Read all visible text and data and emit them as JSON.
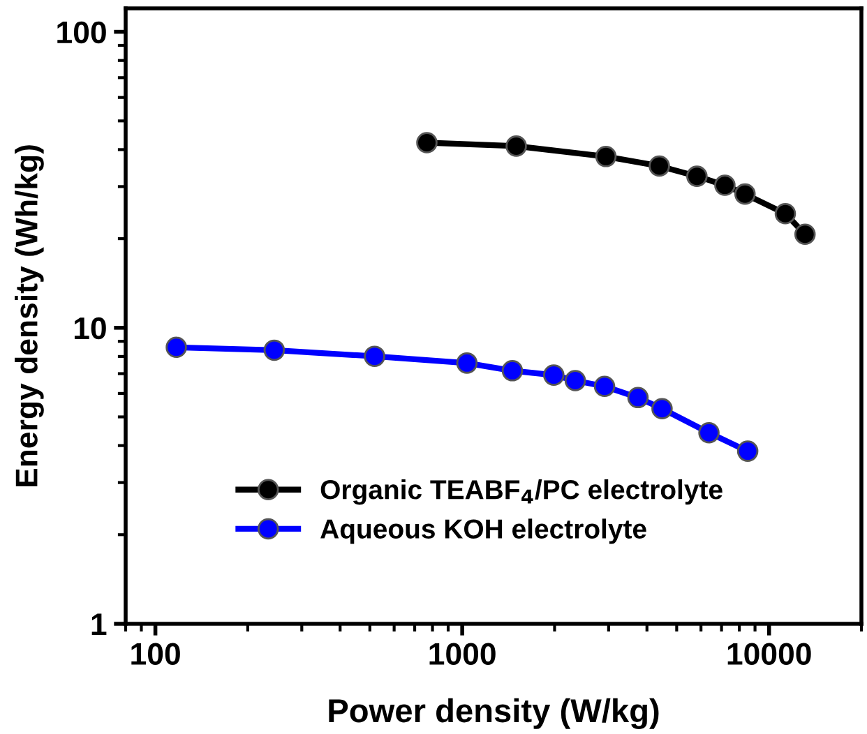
{
  "chart_data": {
    "type": "line",
    "xlabel": "Power density (W/kg)",
    "ylabel": "Energy density (Wh/kg)",
    "log": "xy",
    "xlim": [
      80,
      20000
    ],
    "xticks": [
      100,
      1000,
      10000
    ],
    "ylim": [
      1,
      120
    ],
    "yticks": [
      1,
      10,
      100
    ],
    "grid": false,
    "legend": "bottom left",
    "marker": "circle",
    "line_style": "solid",
    "series": [
      {
        "name": "Organic TEABF$_{4}$/PC electrolyte",
        "color": "#000000",
        "x": [
          767,
          1500,
          2940,
          4390,
          5820,
          7180,
          8350,
          11300,
          13100
        ],
        "values": [
          42.2,
          41.1,
          37.9,
          35.2,
          32.5,
          30.3,
          28.3,
          24.3,
          20.7
        ]
      },
      {
        "name": "Aqueous KOH electrolyte",
        "color": "#0000ff",
        "x": [
          117,
          244,
          518,
          1036,
          1457,
          1988,
          2336,
          2910,
          3740,
          4480,
          6370,
          8520
        ],
        "values": [
          8.59,
          8.4,
          8.01,
          7.6,
          7.16,
          6.92,
          6.63,
          6.34,
          5.81,
          5.33,
          4.42,
          3.83
        ]
      }
    ]
  }
}
